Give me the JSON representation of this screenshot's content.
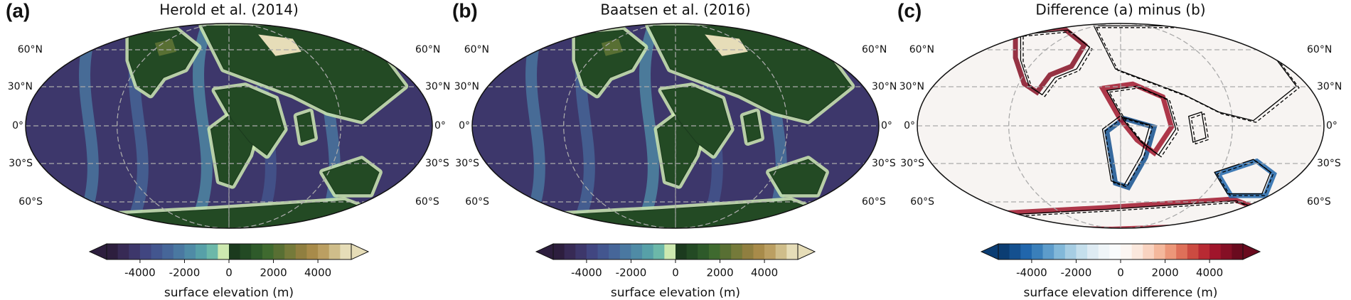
{
  "panels": [
    {
      "label": "(a)",
      "title": "Herold et al. (2014)",
      "style": "elevation",
      "lat_labels": [
        "60°N",
        "30°N",
        "0°",
        "30°S",
        "60°S"
      ],
      "colorbar": {
        "type": "colorbar",
        "label": "surface elevation (m)",
        "clim": [
          -5500,
          5500
        ],
        "ticks": [
          -4000,
          -2000,
          0,
          2000,
          4000
        ],
        "extend": "both",
        "colors": [
          "#2d1e3e",
          "#372a55",
          "#3d376b",
          "#414681",
          "#43568f",
          "#466699",
          "#4a78a1",
          "#4f8ba6",
          "#57a0a8",
          "#6cb8a9",
          "#cde9b0",
          "#1b3a1e",
          "#234a24",
          "#2e5a2a",
          "#3f6a2f",
          "#586f33",
          "#757a3a",
          "#907f40",
          "#a88b4a",
          "#bb9f62",
          "#cfbd8a",
          "#e6ddb8"
        ]
      }
    },
    {
      "label": "(b)",
      "title": "Baatsen et al. (2016)",
      "style": "elevation",
      "lat_labels": [
        "60°N",
        "30°N",
        "0°",
        "30°S",
        "60°S"
      ],
      "colorbar": {
        "type": "colorbar",
        "label": "surface elevation (m)",
        "clim": [
          -5500,
          5500
        ],
        "ticks": [
          -4000,
          -2000,
          0,
          2000,
          4000
        ],
        "extend": "both",
        "colors": [
          "#2d1e3e",
          "#372a55",
          "#3d376b",
          "#414681",
          "#43568f",
          "#466699",
          "#4a78a1",
          "#4f8ba6",
          "#57a0a8",
          "#6cb8a9",
          "#cde9b0",
          "#1b3a1e",
          "#234a24",
          "#2e5a2a",
          "#3f6a2f",
          "#586f33",
          "#757a3a",
          "#907f40",
          "#a88b4a",
          "#bb9f62",
          "#cfbd8a",
          "#e6ddb8"
        ]
      }
    },
    {
      "label": "(c)",
      "title": "Difference (a) minus (b)",
      "style": "difference",
      "lat_labels": [
        "60°N",
        "30°N",
        "0°",
        "30°S",
        "60°S"
      ],
      "colorbar": {
        "type": "colorbar",
        "label": "surface elevation difference (m)",
        "clim": [
          -5500,
          5500
        ],
        "ticks": [
          -4000,
          -2000,
          0,
          2000,
          4000
        ],
        "extend": "both",
        "colors": [
          "#0b3d73",
          "#14508f",
          "#2166ac",
          "#3a7fba",
          "#5d9ccb",
          "#82b8d9",
          "#a6cde3",
          "#c5dfec",
          "#deebf3",
          "#eff5f8",
          "#f9fbfc",
          "#fcf6f2",
          "#fbe8dd",
          "#f9d3c0",
          "#f4b89c",
          "#ec9779",
          "#de7059",
          "#cc4b41",
          "#b82a33",
          "#a0152b",
          "#850f25",
          "#6a0a1e"
        ]
      }
    }
  ]
}
